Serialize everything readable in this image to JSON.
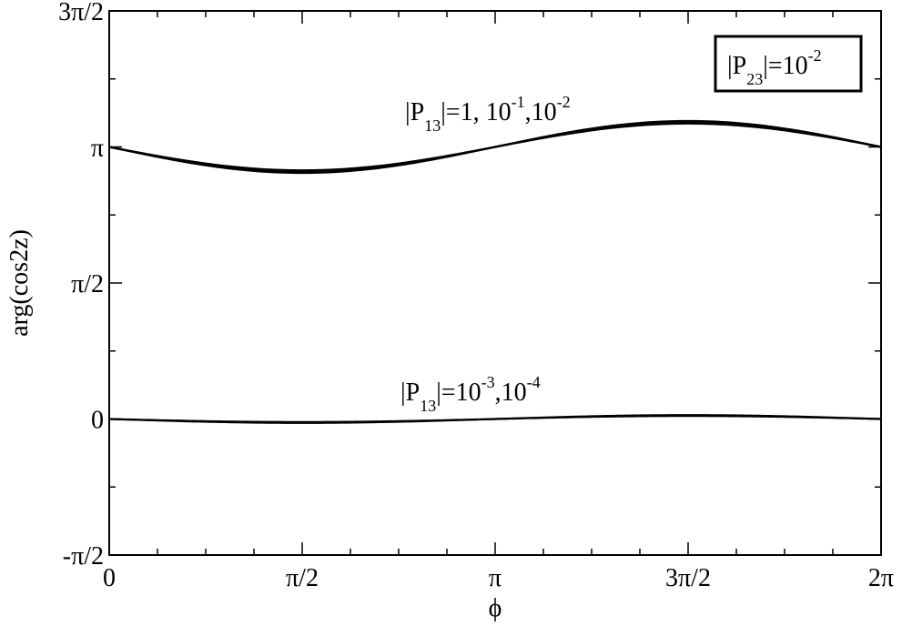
{
  "chart_data": {
    "type": "line",
    "xlabel": "ϕ",
    "ylabel": "arg(cos2z)",
    "xlim": [
      0,
      6.283185
    ],
    "ylim": [
      -1.570796,
      4.712389
    ],
    "x_ticks": [
      {
        "value": 0,
        "label": "0"
      },
      {
        "value": 1.570796,
        "label": "π/2"
      },
      {
        "value": 3.141593,
        "label": "π"
      },
      {
        "value": 4.712389,
        "label": "3π/2"
      },
      {
        "value": 6.283185,
        "label": "2π"
      }
    ],
    "y_ticks": [
      {
        "value": -1.570796,
        "label": "-π/2"
      },
      {
        "value": 0,
        "label": "0"
      },
      {
        "value": 1.570796,
        "label": "π/2"
      },
      {
        "value": 3.141593,
        "label": "π"
      },
      {
        "value": 4.712389,
        "label": "3π/2"
      }
    ],
    "series": [
      {
        "offset": 3.141593,
        "amplitude": 0.3
      },
      {
        "offset": 3.141593,
        "amplitude": 0.28
      },
      {
        "offset": 3.141593,
        "amplitude": 0.27
      },
      {
        "offset": 0,
        "amplitude": 0.045
      },
      {
        "offset": 0,
        "amplitude": 0.035
      }
    ],
    "annotations": {
      "upper": {
        "base": "|P",
        "sub": "13",
        "text1": "|=1, 10",
        "sup1": "-1",
        "text2": ",10",
        "sup2": "-2"
      },
      "lower": {
        "base": "|P",
        "sub": "13",
        "text1": "|=10",
        "sup1": "-3",
        "text2": ",10",
        "sup2": "-4"
      },
      "legend": {
        "base": "|P",
        "sub": "23",
        "text1": "|=10",
        "sup1": "-2"
      }
    }
  }
}
